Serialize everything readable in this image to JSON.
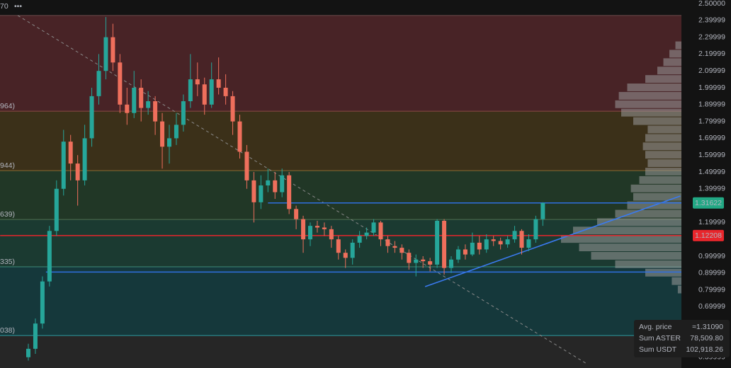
{
  "chart_data": {
    "type": "candlestick",
    "top_label": "70",
    "ylim": [
      0.336,
      2.521
    ],
    "yticks": [
      {
        "value": 2.5,
        "label": "2.50000"
      },
      2.39999,
      2.29999,
      2.19999,
      2.09999,
      1.99999,
      1.89999,
      1.79999,
      1.69999,
      1.59999,
      1.49999,
      1.39999,
      1.19999,
      0.99999,
      0.89999,
      0.79999,
      0.69999,
      0.39999
    ],
    "up_color": "#26a69a",
    "down_color": "#ef6f5c",
    "candles": [
      [
        0.4,
        0.48,
        0.38,
        0.45
      ],
      [
        0.45,
        0.63,
        0.42,
        0.6
      ],
      [
        0.6,
        0.88,
        0.57,
        0.85
      ],
      [
        0.85,
        1.18,
        0.82,
        1.15
      ],
      [
        1.15,
        1.45,
        1.12,
        1.4
      ],
      [
        1.4,
        1.75,
        1.36,
        1.68
      ],
      [
        1.68,
        1.72,
        1.45,
        1.55
      ],
      [
        1.55,
        1.6,
        1.3,
        1.45
      ],
      [
        1.45,
        1.78,
        1.42,
        1.7
      ],
      [
        1.7,
        2.0,
        1.65,
        1.95
      ],
      [
        1.95,
        2.2,
        1.9,
        2.1
      ],
      [
        2.1,
        2.42,
        2.05,
        2.3
      ],
      [
        2.3,
        2.38,
        2.1,
        2.15
      ],
      [
        2.15,
        2.2,
        1.85,
        1.9
      ],
      [
        1.9,
        2.0,
        1.78,
        1.85
      ],
      [
        1.85,
        2.1,
        1.82,
        2.0
      ],
      [
        2.0,
        2.05,
        1.8,
        1.88
      ],
      [
        1.88,
        1.98,
        1.84,
        1.92
      ],
      [
        1.92,
        1.95,
        1.72,
        1.8
      ],
      [
        1.8,
        1.85,
        1.52,
        1.65
      ],
      [
        1.65,
        1.78,
        1.55,
        1.7
      ],
      [
        1.7,
        1.85,
        1.66,
        1.78
      ],
      [
        1.78,
        1.96,
        1.74,
        1.92
      ],
      [
        1.92,
        2.2,
        1.88,
        2.05
      ],
      [
        2.05,
        2.15,
        1.95,
        2.02
      ],
      [
        2.02,
        2.06,
        1.84,
        1.9
      ],
      [
        1.9,
        2.15,
        1.88,
        2.05
      ],
      [
        2.05,
        2.18,
        1.96,
        2.0
      ],
      [
        2.0,
        2.08,
        1.9,
        1.95
      ],
      [
        1.95,
        1.98,
        1.72,
        1.8
      ],
      [
        1.8,
        1.84,
        1.58,
        1.62
      ],
      [
        1.62,
        1.66,
        1.4,
        1.45
      ],
      [
        1.45,
        1.5,
        1.2,
        1.32
      ],
      [
        1.32,
        1.48,
        1.28,
        1.42
      ],
      [
        1.42,
        1.52,
        1.38,
        1.45
      ],
      [
        1.45,
        1.5,
        1.34,
        1.38
      ],
      [
        1.38,
        1.52,
        1.35,
        1.48
      ],
      [
        1.48,
        1.5,
        1.25,
        1.28
      ],
      [
        1.28,
        1.3,
        1.16,
        1.22
      ],
      [
        1.22,
        1.24,
        1.02,
        1.1
      ],
      [
        1.1,
        1.2,
        1.06,
        1.18
      ],
      [
        1.18,
        1.21,
        1.14,
        1.17
      ],
      [
        1.17,
        1.2,
        1.12,
        1.16
      ],
      [
        1.16,
        1.18,
        1.05,
        1.1
      ],
      [
        1.1,
        1.12,
        0.98,
        1.02
      ],
      [
        1.02,
        1.04,
        0.93,
        0.99
      ],
      [
        0.99,
        1.1,
        0.95,
        1.08
      ],
      [
        1.08,
        1.15,
        1.05,
        1.12
      ],
      [
        1.12,
        1.17,
        1.1,
        1.14
      ],
      [
        1.14,
        1.22,
        1.12,
        1.2
      ],
      [
        1.2,
        1.21,
        1.06,
        1.1
      ],
      [
        1.1,
        1.12,
        1.02,
        1.06
      ],
      [
        1.06,
        1.09,
        1.02,
        1.05
      ],
      [
        1.05,
        1.07,
        0.98,
        1.02
      ],
      [
        1.02,
        1.04,
        0.92,
        0.96
      ],
      [
        0.96,
        1.01,
        0.88,
        0.98
      ],
      [
        0.98,
        1.0,
        0.93,
        0.97
      ],
      [
        0.97,
        0.99,
        0.91,
        0.95
      ],
      [
        0.95,
        1.22,
        0.93,
        1.21
      ],
      [
        1.21,
        1.22,
        0.89,
        0.93
      ],
      [
        0.93,
        1.0,
        0.9,
        0.98
      ],
      [
        0.98,
        1.06,
        0.96,
        1.04
      ],
      [
        1.04,
        1.07,
        0.98,
        1.01
      ],
      [
        1.01,
        1.14,
        1.0,
        1.08
      ],
      [
        1.08,
        1.12,
        1.01,
        1.04
      ],
      [
        1.04,
        1.13,
        1.02,
        1.1
      ],
      [
        1.1,
        1.12,
        1.06,
        1.09
      ],
      [
        1.09,
        1.11,
        1.04,
        1.07
      ],
      [
        1.07,
        1.12,
        1.05,
        1.1
      ],
      [
        1.1,
        1.18,
        1.08,
        1.15
      ],
      [
        1.15,
        1.16,
        1.01,
        1.05
      ],
      [
        1.05,
        1.13,
        1.03,
        1.1
      ],
      [
        1.1,
        1.24,
        1.08,
        1.22
      ],
      [
        1.22,
        1.32,
        1.18,
        1.316
      ]
    ],
    "fib_levels": {
      "values": [
        2.429,
        1.861,
        1.508,
        1.218,
        0.937,
        0.529
      ],
      "labels": [
        "70",
        "964)",
        "944)",
        "639)",
        "335)",
        "038)"
      ],
      "line_colors": [
        "#6a4a4a",
        "#8a4a46",
        "#8a6a30",
        "#4f7050",
        "#3d8a78",
        "#2f9aa0"
      ],
      "label_colors": [
        "#b2b5be",
        "#f05a50",
        "#f0a020",
        "#8fd08a",
        "#40c0a8",
        "#30b8c8"
      ],
      "zone_colors": [
        "#482326",
        "#3b3019",
        "#213726",
        "#1b3a31",
        "#15383b",
        "#262626"
      ]
    },
    "horizontal_lines": [
      {
        "value": 1.31622,
        "label": "1.31622",
        "color": "#2f6fe0",
        "start": 34
      },
      {
        "value": 0.906,
        "color": "#2f6fe0",
        "start": 2.5
      },
      {
        "value": 1.12208,
        "label": "1.12208",
        "color": "#e8262c",
        "start": -4
      }
    ],
    "trend_lines": [
      {
        "from": [
          56.3,
          0.819
        ],
        "to": [
          92.5,
          1.357
        ],
        "color": "#3a7af0",
        "dashed": false
      },
      {
        "from": [
          -1.5,
          2.429
        ],
        "to": [
          79.4,
          0.357
        ],
        "color": "#8a8a8a",
        "dashed": true
      }
    ],
    "volume_profile": {
      "prices": [
        0.8,
        0.85,
        0.9,
        0.95,
        1.0,
        1.05,
        1.1,
        1.15,
        1.2,
        1.25,
        1.3,
        1.35,
        1.4,
        1.45,
        1.5,
        1.55,
        1.6,
        1.65,
        1.7,
        1.75,
        1.8,
        1.85,
        1.9,
        1.95,
        2.0,
        2.05,
        2.1,
        2.15,
        2.2,
        2.25
      ],
      "values": [
        3,
        8,
        30,
        55,
        75,
        85,
        100,
        90,
        70,
        55,
        45,
        40,
        42,
        35,
        30,
        28,
        30,
        32,
        30,
        28,
        40,
        50,
        55,
        52,
        45,
        30,
        20,
        15,
        10,
        5
      ],
      "xlim": [
        0,
        100
      ],
      "color": "#9a9a9a"
    },
    "info_box": [
      {
        "label": "Avg. price",
        "value": "≈1.31090"
      },
      {
        "label": "Sum ASTER",
        "value": "78,509.80"
      },
      {
        "label": "Sum USDT",
        "value": "102,918.26"
      }
    ]
  }
}
